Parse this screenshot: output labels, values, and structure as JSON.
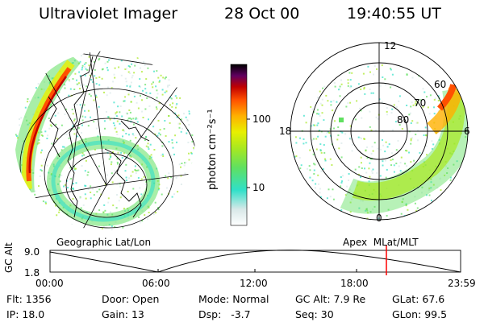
{
  "header": {
    "title": "Ultraviolet Imager",
    "date": "28 Oct 00",
    "time": "19:40:55 UT"
  },
  "colorbar": {
    "label": "photon cm⁻²s⁻¹",
    "tick_100": "100",
    "tick_10": "10",
    "colors": [
      "#ffffff",
      "#d8e8e8",
      "#30e0c8",
      "#60e060",
      "#a8e820",
      "#e8f000",
      "#ffb000",
      "#ff5000",
      "#c00000",
      "#600060",
      "#000000"
    ]
  },
  "left_panel": {
    "caption": "Geographic Lat/Lon"
  },
  "right_panel": {
    "caption": "Apex  MLat/MLT",
    "mlt_labels": {
      "top": "12",
      "left": "18",
      "right": "6",
      "bottom": "0"
    },
    "lat_labels": [
      "60",
      "70",
      "80"
    ]
  },
  "altitude_plot": {
    "ylabel": "GC Alt",
    "ymax_label": "9.0",
    "ymin_label": "1.8",
    "time_labels": [
      "00:00",
      "06:00",
      "12:00",
      "18:00",
      "23:59"
    ],
    "marker_color": "#ff0000"
  },
  "info": {
    "flt_label": "Flt:",
    "flt_value": "1356",
    "ip_label": "IP:",
    "ip_value": "18.0",
    "door_label": "Door:",
    "door_value": "Open",
    "gain_label": "Gain:",
    "gain_value": "13",
    "mode_label": "Mode:",
    "mode_value": "Normal",
    "dsp_label": "Dsp:",
    "dsp_value": "-3.7",
    "gcalt_label": "GC Alt:",
    "gcalt_value": "7.9 Re",
    "seq_label": "Seq:",
    "seq_value": "30",
    "glat_label": "GLat:",
    "glat_value": "67.6",
    "glon_label": "GLon:",
    "glon_value": "99.5"
  }
}
